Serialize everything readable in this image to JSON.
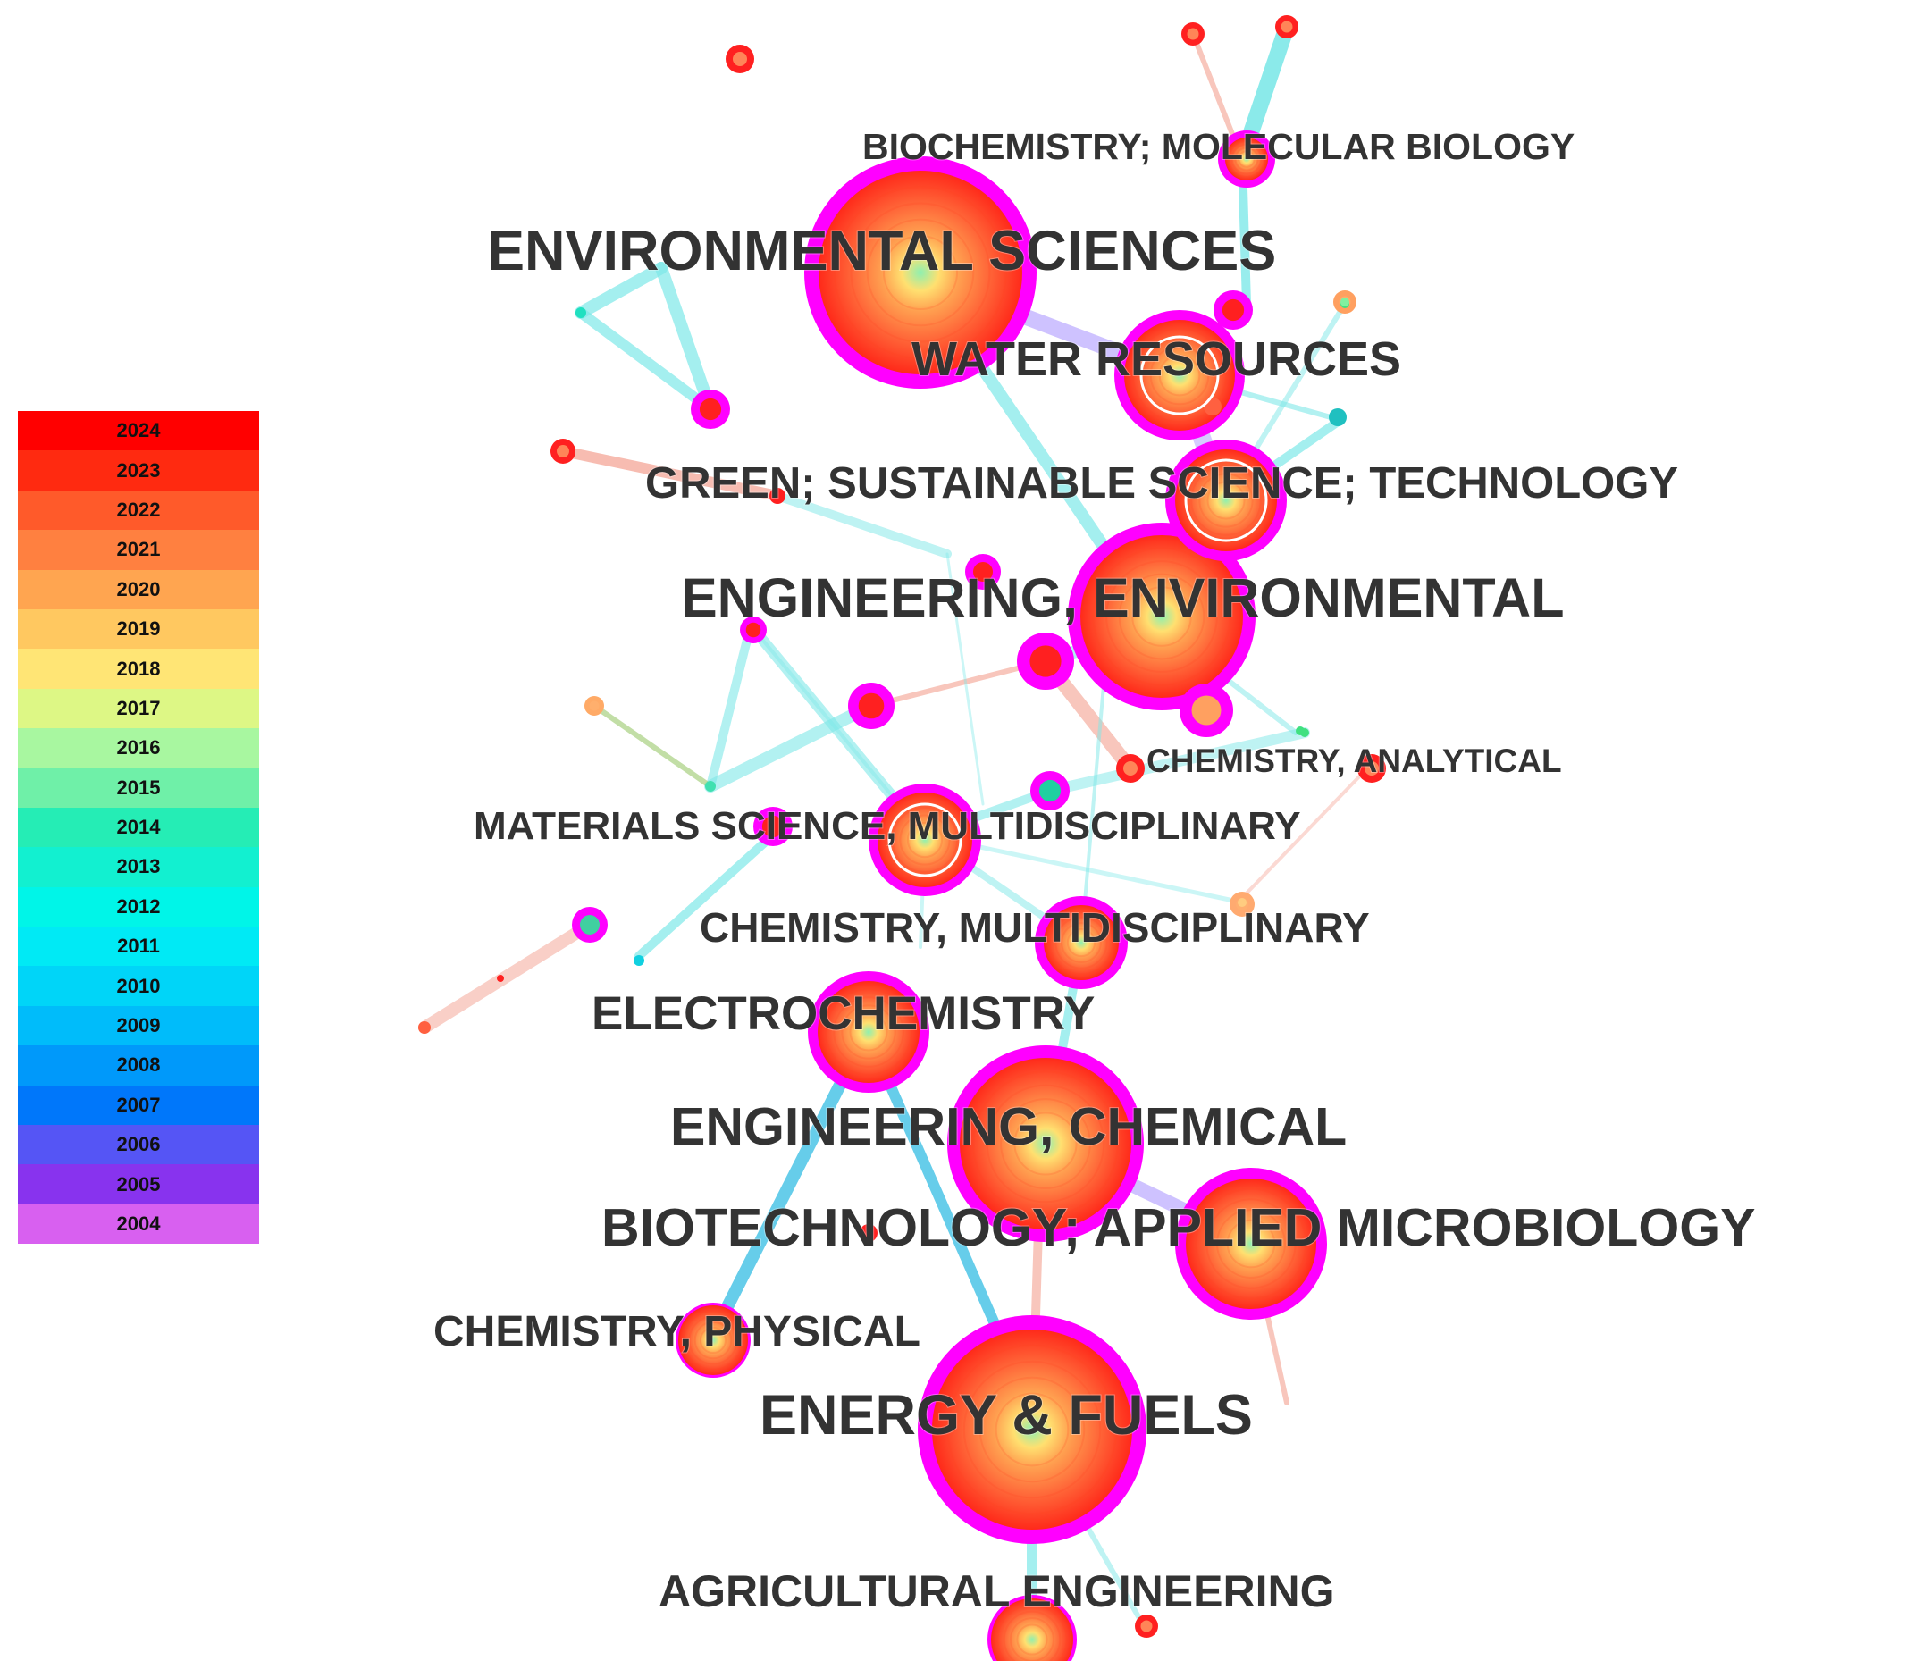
{
  "legend": {
    "years": [
      {
        "year": "2024",
        "color": "#ff0000"
      },
      {
        "year": "2023",
        "color": "#ff2a10"
      },
      {
        "year": "2022",
        "color": "#ff5a2a"
      },
      {
        "year": "2021",
        "color": "#ff8040"
      },
      {
        "year": "2020",
        "color": "#ffa550"
      },
      {
        "year": "2019",
        "color": "#ffc860"
      },
      {
        "year": "2018",
        "color": "#ffe575"
      },
      {
        "year": "2017",
        "color": "#ddf785"
      },
      {
        "year": "2016",
        "color": "#a8f7a0"
      },
      {
        "year": "2015",
        "color": "#6ff0a8"
      },
      {
        "year": "2014",
        "color": "#25edb5"
      },
      {
        "year": "2013",
        "color": "#12f0d0"
      },
      {
        "year": "2012",
        "color": "#00f5e8"
      },
      {
        "year": "2011",
        "color": "#00eaf5"
      },
      {
        "year": "2010",
        "color": "#00d5f8"
      },
      {
        "year": "2009",
        "color": "#00bcfa"
      },
      {
        "year": "2008",
        "color": "#0099fa"
      },
      {
        "year": "2007",
        "color": "#0077fa"
      },
      {
        "year": "2006",
        "color": "#5555f5"
      },
      {
        "year": "2005",
        "color": "#8833ee"
      },
      {
        "year": "2004",
        "color": "#d860f0"
      }
    ]
  },
  "colors": {
    "ring_outer": "#ff00ff",
    "core_red": "#ff2020",
    "core_center": "#8ef0b0",
    "edge_cyan": "#7ee8e8",
    "edge_purple": "#b9a8ff",
    "edge_salmon": "#f4a090",
    "label": "#333333"
  },
  "nodes": [
    {
      "id": "env-sci",
      "label": "ENVIRONMENTAL SCIENCES",
      "size": "xl"
    },
    {
      "id": "biochem",
      "label": "BIOCHEMISTRY; MOLECULAR BIOLOGY",
      "size": "s"
    },
    {
      "id": "water",
      "label": "WATER RESOURCES",
      "size": "l"
    },
    {
      "id": "green",
      "label": "GREEN; SUSTAINABLE SCIENCE; TECHNOLOGY",
      "size": "l"
    },
    {
      "id": "eng-env",
      "label": "ENGINEERING, ENVIRONMENTAL",
      "size": "xl"
    },
    {
      "id": "chem-anal",
      "label": "CHEMISTRY, ANALYTICAL",
      "size": "s"
    },
    {
      "id": "mat-sci",
      "label": "MATERIALS SCIENCE, MULTIDISCIPLINARY",
      "size": "m"
    },
    {
      "id": "chem-multi",
      "label": "CHEMISTRY, MULTIDISCIPLINARY",
      "size": "m"
    },
    {
      "id": "electro",
      "label": "ELECTROCHEMISTRY",
      "size": "m"
    },
    {
      "id": "eng-chem",
      "label": "ENGINEERING, CHEMICAL",
      "size": "xl"
    },
    {
      "id": "biotech",
      "label": "BIOTECHNOLOGY; APPLIED MICROBIOLOGY",
      "size": "l"
    },
    {
      "id": "chem-phys",
      "label": "CHEMISTRY, PHYSICAL",
      "size": "s"
    },
    {
      "id": "energy",
      "label": "ENERGY & FUELS",
      "size": "xl"
    },
    {
      "id": "agri",
      "label": "AGRICULTURAL ENGINEERING",
      "size": "m"
    }
  ]
}
